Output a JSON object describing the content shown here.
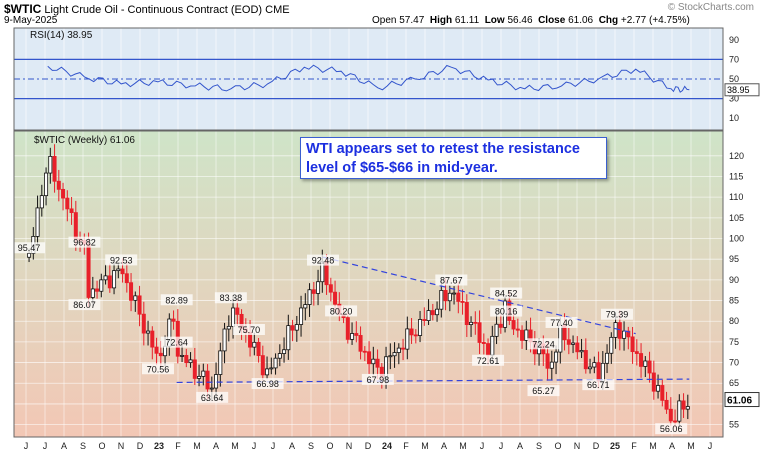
{
  "header": {
    "symbol": "$WTIC",
    "name": "Light Crude Oil - Continuous Contract (EOD)",
    "exchange": "CME",
    "date": "9-May-2025",
    "watermark": "© StockCharts.com"
  },
  "quote": {
    "open_label": "Open",
    "open": "57.47",
    "high_label": "High",
    "high": "61.11",
    "low_label": "Low",
    "low": "56.46",
    "close_label": "Close",
    "close": "61.06",
    "chg_label": "Chg",
    "chg": "+2.77 (+4.75%)"
  },
  "annotation": "WTI appears set to retest the resistance level of $65-$66 in mid-year.",
  "colors": {
    "up": "#111111",
    "down": "#e8202a",
    "rsi": "#3355cc",
    "trend": "#3344dd",
    "upper_bg": "#dfeaf5",
    "main_top": "#cfe4c8",
    "main_bottom": "#f3c7b5"
  },
  "chart_data": [
    {
      "type": "line",
      "title": "RSI(14) 38.95",
      "ylim": [
        0,
        100
      ],
      "reference_lines": [
        30,
        50,
        70
      ],
      "y_ticks": [
        "90",
        "70",
        "50",
        "30",
        "10"
      ],
      "last_value_label": "38.95",
      "x": [
        "2022-06",
        "2022-08",
        "2022-10",
        "2022-12",
        "2023-02",
        "2023-04",
        "2023-06",
        "2023-08",
        "2023-10",
        "2023-12",
        "2024-02",
        "2024-04",
        "2024-06",
        "2024-08",
        "2024-10",
        "2024-12",
        "2025-02",
        "2025-04",
        "2025-05"
      ],
      "values": [
        63,
        52,
        45,
        47,
        43,
        40,
        45,
        62,
        58,
        41,
        50,
        62,
        49,
        40,
        43,
        50,
        60,
        40,
        39
      ]
    },
    {
      "type": "candlestick",
      "title": "$WTIC (Weekly) 61.06",
      "ylim": [
        52,
        126
      ],
      "y_ticks": [
        "120",
        "115",
        "110",
        "105",
        "100",
        "95",
        "90",
        "85",
        "80",
        "75",
        "70",
        "65",
        "60",
        "55"
      ],
      "last_price_label": "61.06",
      "x_ticks": [
        "J",
        "J",
        "A",
        "S",
        "O",
        "N",
        "D",
        "23",
        "F",
        "M",
        "A",
        "M",
        "J",
        "J",
        "A",
        "S",
        "O",
        "N",
        "D",
        "24",
        "F",
        "M",
        "A",
        "M",
        "J",
        "J",
        "A",
        "S",
        "O",
        "N",
        "D",
        "25",
        "F",
        "M",
        "A",
        "M",
        "J"
      ],
      "key_points": [
        {
          "date": "2022-06",
          "value": 119.0
        },
        {
          "date": "2022-05",
          "value": 95.47,
          "label": "95.47"
        },
        {
          "date": "2022-08",
          "value": 96.82,
          "label": "96.82"
        },
        {
          "date": "2022-08",
          "value": 86.07,
          "label": "86.07"
        },
        {
          "date": "2022-10",
          "value": 92.53,
          "label": "92.53"
        },
        {
          "date": "2022-12",
          "value": 70.56,
          "label": "70.56"
        },
        {
          "date": "2023-01",
          "value": 82.89,
          "label": "82.89"
        },
        {
          "date": "2023-01",
          "value": 72.64,
          "label": "72.64"
        },
        {
          "date": "2023-04",
          "value": 83.38,
          "label": "83.38"
        },
        {
          "date": "2023-03",
          "value": 63.64,
          "label": "63.64"
        },
        {
          "date": "2023-05",
          "value": 75.7,
          "label": "75.70"
        },
        {
          "date": "2023-06",
          "value": 66.98,
          "label": "66.98"
        },
        {
          "date": "2023-09",
          "value": 92.48,
          "label": "92.48"
        },
        {
          "date": "2023-10",
          "value": 80.2,
          "label": "80.20"
        },
        {
          "date": "2023-12",
          "value": 67.98,
          "label": "67.98"
        },
        {
          "date": "2024-04",
          "value": 87.67,
          "label": "87.67"
        },
        {
          "date": "2024-06",
          "value": 72.61,
          "label": "72.61"
        },
        {
          "date": "2024-07",
          "value": 84.52,
          "label": "84.52"
        },
        {
          "date": "2024-07",
          "value": 80.16,
          "label": "80.16"
        },
        {
          "date": "2024-09",
          "value": 72.24,
          "label": "72.24"
        },
        {
          "date": "2024-09",
          "value": 65.27,
          "label": "65.27"
        },
        {
          "date": "2024-10",
          "value": 77.4,
          "label": "77.40"
        },
        {
          "date": "2024-12",
          "value": 66.71,
          "label": "66.71"
        },
        {
          "date": "2025-01",
          "value": 79.39,
          "label": "79.39"
        },
        {
          "date": "2025-03",
          "value": 66.0
        },
        {
          "date": "2025-04",
          "value": 56.06,
          "label": "56.06"
        },
        {
          "date": "2025-05",
          "value": 61.06
        }
      ],
      "trendlines": [
        {
          "from": [
            "2023-09",
            95.5
          ],
          "to": [
            "2025-02",
            77.0
          ],
          "style": "dashed"
        },
        {
          "from": [
            "2023-01",
            65.2
          ],
          "to": [
            "2025-05",
            66.0
          ],
          "style": "dashed"
        }
      ]
    }
  ]
}
